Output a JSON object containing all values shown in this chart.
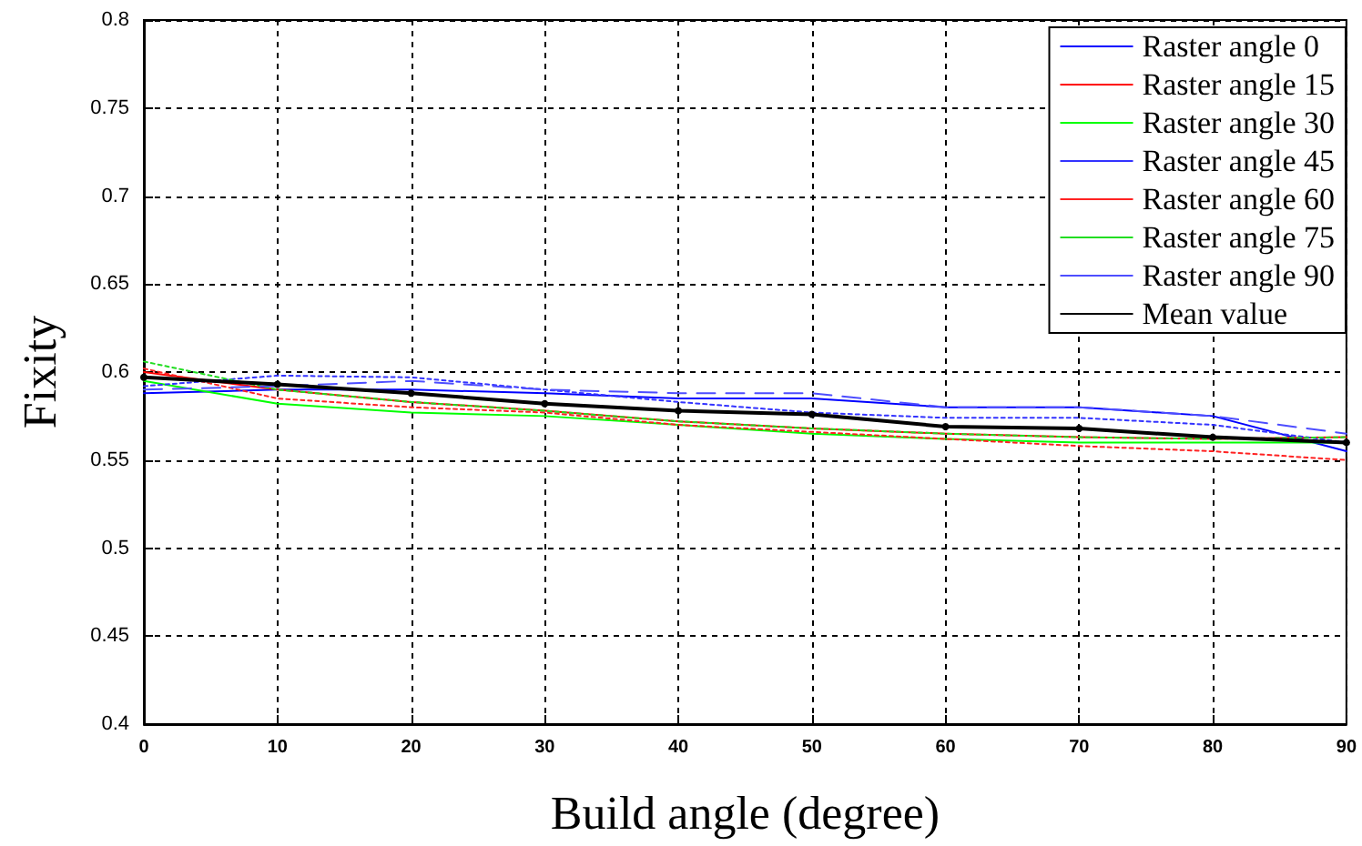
{
  "chart_data": {
    "type": "line",
    "xlabel": "Build angle (degree)",
    "ylabel": "Fixity",
    "x": [
      0,
      10,
      20,
      30,
      40,
      50,
      60,
      70,
      80,
      90
    ],
    "xlim": [
      0,
      90
    ],
    "xticks": [
      0,
      10,
      20,
      30,
      40,
      50,
      60,
      70,
      80,
      90
    ],
    "ylim": [
      0.4,
      0.8
    ],
    "yticks": [
      0.4,
      0.45,
      0.5,
      0.55,
      0.6,
      0.65,
      0.7,
      0.75,
      0.8
    ],
    "grid": true,
    "legend": "top right",
    "series": [
      {
        "name": "Raster angle 0",
        "color": "#0000ff",
        "line_style": "solid",
        "marker": "none",
        "values": [
          0.588,
          0.59,
          0.59,
          0.588,
          0.585,
          0.585,
          0.58,
          0.58,
          0.575,
          0.555
        ]
      },
      {
        "name": "Raster angle 15",
        "color": "#ff0000",
        "line_style": "solid",
        "marker": "none",
        "values": [
          0.6,
          0.59,
          0.583,
          0.578,
          0.572,
          0.568,
          0.565,
          0.563,
          0.562,
          0.563
        ]
      },
      {
        "name": "Raster angle 30",
        "color": "#00ff00",
        "line_style": "solid",
        "marker": "none",
        "values": [
          0.595,
          0.582,
          0.577,
          0.575,
          0.57,
          0.565,
          0.562,
          0.56,
          0.56,
          0.56
        ]
      },
      {
        "name": "Raster angle 45",
        "color": "#3333ff",
        "line_style": "dotted",
        "marker": "none",
        "values": [
          0.592,
          0.598,
          0.597,
          0.59,
          0.583,
          0.577,
          0.574,
          0.574,
          0.57,
          0.56
        ]
      },
      {
        "name": "Raster angle 60",
        "color": "#ff2222",
        "line_style": "dotted",
        "marker": "none",
        "values": [
          0.602,
          0.585,
          0.58,
          0.577,
          0.57,
          0.566,
          0.562,
          0.558,
          0.555,
          0.55
        ]
      },
      {
        "name": "Raster angle 75",
        "color": "#22dd22",
        "line_style": "dotted",
        "marker": "none",
        "values": [
          0.606,
          0.59,
          0.583,
          0.578,
          0.572,
          0.568,
          0.565,
          0.563,
          0.562,
          0.563
        ]
      },
      {
        "name": "Raster angle 90",
        "color": "#4d4dff",
        "line_style": "dashed",
        "marker": "none",
        "values": [
          0.59,
          0.592,
          0.595,
          0.59,
          0.588,
          0.588,
          0.58,
          0.58,
          0.575,
          0.565
        ]
      },
      {
        "name": "Mean value",
        "color": "#000000",
        "line_style": "solid",
        "marker": "circle",
        "values": [
          0.597,
          0.593,
          0.588,
          0.582,
          0.578,
          0.576,
          0.569,
          0.568,
          0.563,
          0.56
        ]
      }
    ]
  }
}
